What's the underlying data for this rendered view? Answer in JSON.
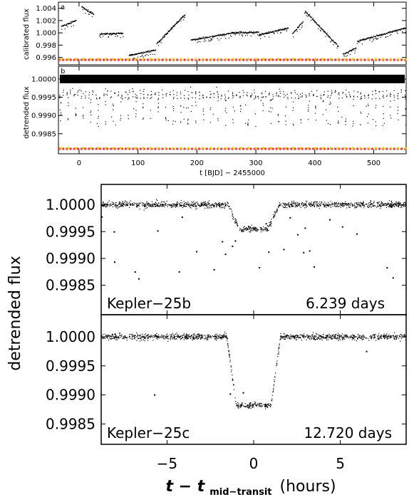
{
  "chart_data": [
    {
      "id": "a",
      "type": "scatter",
      "panel_label": "a",
      "xlabel": "t [BJD] − 2455000",
      "ylabel": "calibrated flux",
      "xlim": [
        -35,
        555
      ],
      "ylim": [
        0.9948,
        1.005
      ],
      "xticks": [
        0,
        100,
        200,
        300,
        400,
        500
      ],
      "yticks": [
        0.996,
        0.998,
        1.0,
        1.002,
        1.004
      ],
      "ytick_labels": [
        "0.996",
        "0.998",
        "1.000",
        "1.002",
        "1.004"
      ],
      "colors": {
        "marker_red": "#e8473b",
        "marker_yellow": "#f2c418"
      },
      "segments": [
        {
          "x": [
            -30,
            -5
          ],
          "y": [
            1.001,
            1.002
          ]
        },
        {
          "x": [
            5,
            25
          ],
          "y": [
            1.0042,
            1.003
          ]
        },
        {
          "x": [
            35,
            75
          ],
          "y": [
            0.9998,
            0.9999
          ]
        },
        {
          "x": [
            85,
            130
          ],
          "y": [
            0.9963,
            0.9972
          ]
        },
        {
          "x": [
            132,
            180
          ],
          "y": [
            0.9982,
            1.003
          ]
        },
        {
          "x": [
            190,
            262
          ],
          "y": [
            0.9988,
            1.0
          ]
        },
        {
          "x": [
            262,
            305
          ],
          "y": [
            1.0,
            1.0001
          ]
        },
        {
          "x": [
            305,
            355
          ],
          "y": [
            0.9996,
            1.0008
          ]
        },
        {
          "x": [
            362,
            380
          ],
          "y": [
            0.9998,
            1.0018
          ]
        },
        {
          "x": [
            383,
            440
          ],
          "y": [
            1.0036,
            0.9978
          ]
        },
        {
          "x": [
            448,
            470
          ],
          "y": [
            0.9965,
            0.9975
          ]
        },
        {
          "x": [
            472,
            555
          ],
          "y": [
            0.9986,
            1.0008
          ]
        }
      ]
    },
    {
      "id": "b",
      "type": "scatter",
      "panel_label": "b",
      "xlabel": "t [BJD] − 2455000",
      "ylabel": "detrended flux",
      "xlim": [
        -35,
        555
      ],
      "ylim": [
        0.99795,
        1.00035
      ],
      "xticks": [
        0,
        100,
        200,
        300,
        400,
        500
      ],
      "yticks": [
        0.9985,
        0.999,
        0.9995,
        1.0
      ],
      "ytick_labels": [
        "0.9985",
        "0.9990",
        "0.9995",
        "1.0000"
      ],
      "baseline": 1.0,
      "colors": {
        "marker_red": "#e8473b",
        "marker_yellow": "#f2c418"
      },
      "transit_b_period_days": 6.239,
      "transit_c_period_days": 12.72
    },
    {
      "id": "c",
      "type": "scatter",
      "label": "Kepler−25b",
      "period_label": "6.239 days",
      "ylabel": "detrended flux",
      "xlim": [
        -8.8,
        8.8
      ],
      "ylim": [
        0.99795,
        1.00038
      ],
      "yticks": [
        0.9985,
        0.999,
        0.9995,
        1.0
      ],
      "ytick_labels": [
        "0.9985",
        "0.9990",
        "0.9995",
        "1.0000"
      ],
      "transit": {
        "depth": 0.00045,
        "half_duration_hours": 1.5,
        "ingress_hours": 0.7
      }
    },
    {
      "id": "d",
      "type": "scatter",
      "label": "Kepler−25c",
      "period_label": "12.720 days",
      "xlabel": "t − t",
      "xlabel_sub": "mid−transit",
      "xlabel_unit": "(hours)",
      "xlim": [
        -8.8,
        8.8
      ],
      "ylim": [
        0.99815,
        1.00038
      ],
      "xticks": [
        -5,
        0,
        5
      ],
      "xtick_labels": [
        "−5",
        "0",
        "5"
      ],
      "yticks": [
        0.9985,
        0.999,
        0.9995,
        1.0
      ],
      "ytick_labels": [
        "0.9985",
        "0.9990",
        "0.9995",
        "1.0000"
      ],
      "transit": {
        "depth": 0.00118,
        "half_duration_hours": 1.55,
        "ingress_hours": 0.55
      }
    }
  ]
}
